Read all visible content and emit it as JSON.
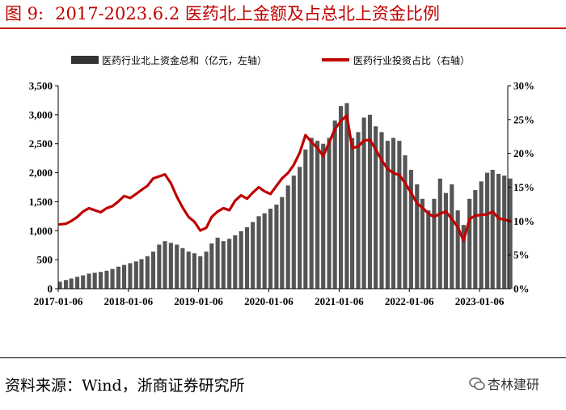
{
  "header": {
    "figure_label": "图 9:",
    "title": "2017-2023.6.2 医药北上金额及占总北上资金比例"
  },
  "footer": {
    "source": "资料来源：Wind，浙商证券研究所",
    "watermark": "杏林建研"
  },
  "colors": {
    "title": "#c00000",
    "bars": "#555555",
    "line": "#c00000"
  },
  "chart_data": {
    "type": "bar+line",
    "left_axis": {
      "ylim": [
        0,
        3500
      ],
      "ticks": [
        "0",
        "500",
        "1,000",
        "1,500",
        "2,000",
        "2,500",
        "3,000",
        "3,500"
      ]
    },
    "right_axis": {
      "ylim": [
        0,
        30
      ],
      "ticks": [
        "0%",
        "5%",
        "10%",
        "15%",
        "20%",
        "25%",
        "30%"
      ]
    },
    "x_ticks": [
      "2017-01-06",
      "2018-01-06",
      "2019-01-06",
      "2020-01-06",
      "2021-01-06",
      "2022-01-06",
      "2023-01-06"
    ],
    "x_range": [
      "2017-01-06",
      "2023-06-02"
    ],
    "legend": {
      "placement": "top",
      "bar_label": "医药行业北上资金总和（亿元，左轴）",
      "line_label": "医药行业投资占比（右轴）"
    },
    "series": [
      {
        "name": "医药行业北上资金总和（亿元，左轴）",
        "kind": "bar",
        "axis": "left",
        "points": [
          [
            "2017-01",
            120
          ],
          [
            "2017-02",
            150
          ],
          [
            "2017-03",
            175
          ],
          [
            "2017-04",
            205
          ],
          [
            "2017-05",
            230
          ],
          [
            "2017-06",
            260
          ],
          [
            "2017-07",
            275
          ],
          [
            "2017-08",
            290
          ],
          [
            "2017-09",
            310
          ],
          [
            "2017-10",
            340
          ],
          [
            "2017-11",
            380
          ],
          [
            "2017-12",
            410
          ],
          [
            "2018-01",
            440
          ],
          [
            "2018-02",
            470
          ],
          [
            "2018-03",
            510
          ],
          [
            "2018-04",
            560
          ],
          [
            "2018-05",
            640
          ],
          [
            "2018-06",
            760
          ],
          [
            "2018-07",
            820
          ],
          [
            "2018-08",
            790
          ],
          [
            "2018-09",
            760
          ],
          [
            "2018-10",
            700
          ],
          [
            "2018-11",
            640
          ],
          [
            "2018-12",
            610
          ],
          [
            "2019-01",
            560
          ],
          [
            "2019-02",
            640
          ],
          [
            "2019-03",
            780
          ],
          [
            "2019-04",
            880
          ],
          [
            "2019-05",
            820
          ],
          [
            "2019-06",
            860
          ],
          [
            "2019-07",
            920
          ],
          [
            "2019-08",
            990
          ],
          [
            "2019-09",
            1060
          ],
          [
            "2019-10",
            1150
          ],
          [
            "2019-11",
            1250
          ],
          [
            "2019-12",
            1300
          ],
          [
            "2020-01",
            1380
          ],
          [
            "2020-02",
            1450
          ],
          [
            "2020-03",
            1580
          ],
          [
            "2020-04",
            1780
          ],
          [
            "2020-05",
            1950
          ],
          [
            "2020-06",
            2100
          ],
          [
            "2020-07",
            2400
          ],
          [
            "2020-08",
            2600
          ],
          [
            "2020-09",
            2550
          ],
          [
            "2020-10",
            2500
          ],
          [
            "2020-11",
            2600
          ],
          [
            "2020-12",
            2900
          ],
          [
            "2021-01",
            3150
          ],
          [
            "2021-02",
            3200
          ],
          [
            "2021-03",
            2600
          ],
          [
            "2021-04",
            2700
          ],
          [
            "2021-05",
            2950
          ],
          [
            "2021-06",
            3000
          ],
          [
            "2021-07",
            2800
          ],
          [
            "2021-08",
            2700
          ],
          [
            "2021-09",
            2550
          ],
          [
            "2021-10",
            2600
          ],
          [
            "2021-11",
            2550
          ],
          [
            "2021-12",
            2300
          ],
          [
            "2022-01",
            2050
          ],
          [
            "2022-02",
            1800
          ],
          [
            "2022-03",
            1550
          ],
          [
            "2022-04",
            1350
          ],
          [
            "2022-05",
            1550
          ],
          [
            "2022-06",
            1900
          ],
          [
            "2022-07",
            1650
          ],
          [
            "2022-08",
            1800
          ],
          [
            "2022-09",
            1350
          ],
          [
            "2022-10",
            1100
          ],
          [
            "2022-11",
            1550
          ],
          [
            "2022-12",
            1700
          ],
          [
            "2023-01",
            1850
          ],
          [
            "2023-02",
            2000
          ],
          [
            "2023-03",
            2050
          ],
          [
            "2023-04",
            1980
          ],
          [
            "2023-05",
            1950
          ],
          [
            "2023-06",
            1900
          ]
        ]
      },
      {
        "name": "医药行业投资占比（右轴）",
        "kind": "line",
        "axis": "right",
        "points": [
          [
            "2017-01",
            9.5
          ],
          [
            "2017-02",
            9.6
          ],
          [
            "2017-03",
            10.0
          ],
          [
            "2017-04",
            10.6
          ],
          [
            "2017-05",
            11.4
          ],
          [
            "2017-06",
            11.9
          ],
          [
            "2017-07",
            11.6
          ],
          [
            "2017-08",
            11.3
          ],
          [
            "2017-09",
            11.9
          ],
          [
            "2017-10",
            12.2
          ],
          [
            "2017-11",
            12.9
          ],
          [
            "2017-12",
            13.7
          ],
          [
            "2018-01",
            13.4
          ],
          [
            "2018-02",
            14.0
          ],
          [
            "2018-03",
            14.6
          ],
          [
            "2018-04",
            15.2
          ],
          [
            "2018-05",
            16.3
          ],
          [
            "2018-06",
            16.6
          ],
          [
            "2018-07",
            16.9
          ],
          [
            "2018-08",
            15.6
          ],
          [
            "2018-09",
            13.6
          ],
          [
            "2018-10",
            12.0
          ],
          [
            "2018-11",
            10.6
          ],
          [
            "2018-12",
            9.9
          ],
          [
            "2019-01",
            8.6
          ],
          [
            "2019-02",
            9.0
          ],
          [
            "2019-03",
            10.6
          ],
          [
            "2019-04",
            11.4
          ],
          [
            "2019-05",
            11.9
          ],
          [
            "2019-06",
            11.6
          ],
          [
            "2019-07",
            13.0
          ],
          [
            "2019-08",
            13.8
          ],
          [
            "2019-09",
            13.3
          ],
          [
            "2019-10",
            14.2
          ],
          [
            "2019-11",
            15.0
          ],
          [
            "2019-12",
            14.4
          ],
          [
            "2020-01",
            14.0
          ],
          [
            "2020-02",
            15.2
          ],
          [
            "2020-03",
            16.3
          ],
          [
            "2020-04",
            17.1
          ],
          [
            "2020-05",
            18.3
          ],
          [
            "2020-06",
            20.1
          ],
          [
            "2020-07",
            22.7
          ],
          [
            "2020-08",
            21.7
          ],
          [
            "2020-09",
            20.8
          ],
          [
            "2020-10",
            19.6
          ],
          [
            "2020-11",
            21.6
          ],
          [
            "2020-12",
            23.6
          ],
          [
            "2021-01",
            24.8
          ],
          [
            "2021-02",
            25.6
          ],
          [
            "2021-03",
            20.8
          ],
          [
            "2021-04",
            21.0
          ],
          [
            "2021-05",
            21.9
          ],
          [
            "2021-06",
            22.0
          ],
          [
            "2021-07",
            20.6
          ],
          [
            "2021-08",
            19.0
          ],
          [
            "2021-09",
            17.7
          ],
          [
            "2021-10",
            17.1
          ],
          [
            "2021-11",
            16.8
          ],
          [
            "2021-12",
            15.6
          ],
          [
            "2022-01",
            14.2
          ],
          [
            "2022-02",
            12.6
          ],
          [
            "2022-03",
            12.0
          ],
          [
            "2022-04",
            11.1
          ],
          [
            "2022-05",
            10.6
          ],
          [
            "2022-06",
            11.1
          ],
          [
            "2022-07",
            11.4
          ],
          [
            "2022-08",
            10.3
          ],
          [
            "2022-09",
            9.1
          ],
          [
            "2022-10",
            7.1
          ],
          [
            "2022-11",
            10.3
          ],
          [
            "2022-12",
            10.8
          ],
          [
            "2023-01",
            10.9
          ],
          [
            "2023-02",
            11.0
          ],
          [
            "2023-03",
            11.4
          ],
          [
            "2023-04",
            10.4
          ],
          [
            "2023-05",
            10.2
          ],
          [
            "2023-06",
            10.0
          ]
        ]
      }
    ]
  }
}
